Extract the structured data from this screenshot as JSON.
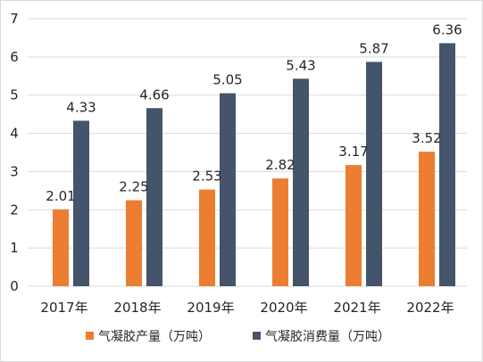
{
  "chart_data": {
    "type": "bar",
    "categories": [
      "2017年",
      "2018年",
      "2019年",
      "2020年",
      "2021年",
      "2022年"
    ],
    "series": [
      {
        "name": "气凝胶产量（万吨）",
        "values": [
          2.01,
          2.25,
          2.53,
          2.82,
          3.17,
          3.52
        ],
        "color": "#ED7D31"
      },
      {
        "name": "气凝胶消费量（万吨）",
        "values": [
          4.33,
          4.66,
          5.05,
          5.43,
          5.87,
          6.36
        ],
        "color": "#44546A"
      }
    ],
    "ylim": [
      0,
      7
    ],
    "yticks": [
      "0",
      "1",
      "2",
      "3",
      "4",
      "5",
      "6",
      "7"
    ],
    "grid": true,
    "gridline_color": "#d9d9d9",
    "legend_position": "bottom",
    "data_labels": true,
    "title": "",
    "xlabel": "",
    "ylabel": ""
  }
}
